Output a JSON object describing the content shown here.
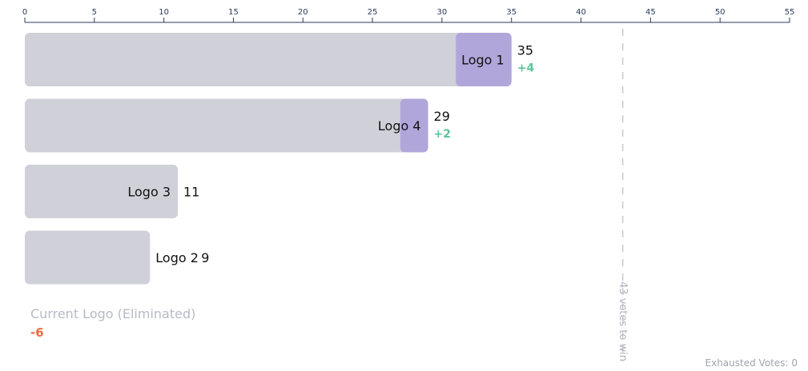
{
  "chart_data": {
    "type": "bar",
    "orientation": "horizontal",
    "stacked": true,
    "xlim": [
      0,
      55
    ],
    "x_ticks": [
      0,
      5,
      10,
      15,
      20,
      25,
      30,
      35,
      40,
      45,
      50,
      55
    ],
    "grid": false,
    "categories": [
      "Logo 1",
      "Logo 4",
      "Logo 3",
      "Logo 2"
    ],
    "series": [
      {
        "name": "",
        "color": "#d0d0d9",
        "values": [
          31,
          27,
          11,
          9
        ]
      },
      {
        "name": "",
        "color": "#b1a6da",
        "values": [
          4,
          2,
          0,
          0
        ]
      }
    ],
    "totals": [
      35,
      29,
      11,
      9
    ],
    "total_labels": [
      "35",
      "29",
      "11",
      "9"
    ],
    "bar_labels": [
      "Logo 1",
      "Logo 4",
      "Logo 3",
      "Logo 2"
    ],
    "deltas": [
      "+4",
      "+2",
      "",
      ""
    ],
    "threshold": {
      "value": 43,
      "label": "43 votes to win"
    },
    "eliminated": {
      "label": "Current Logo (Eliminated)",
      "delta": "-6"
    },
    "exhausted": {
      "label": "Exhausted Votes: 0"
    },
    "colors": {
      "axis": "#2a3a5e",
      "base_bar": "#d0d0d9",
      "transfer_bar": "#b1a6da",
      "positive_delta": "#5cc49a",
      "negative_delta": "#ee6a3f",
      "threshold_line": "#c8cad2"
    }
  }
}
